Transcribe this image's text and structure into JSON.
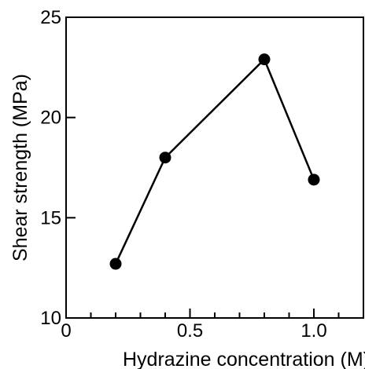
{
  "chart_data": {
    "type": "line",
    "title": "",
    "xlabel": "Hydrazine concentration (M)",
    "ylabel": "Shear strength (MPa)",
    "xlim": [
      0,
      1.2
    ],
    "ylim": [
      10,
      25
    ],
    "x_ticks": [
      {
        "value": 0,
        "label": "0"
      },
      {
        "value": 0.5,
        "label": "0.5"
      },
      {
        "value": 1.0,
        "label": "1.0"
      }
    ],
    "x_minor_ticks": [
      0.1,
      0.2,
      0.3,
      0.4,
      0.6,
      0.7,
      0.8,
      0.9,
      1.1
    ],
    "y_ticks": [
      {
        "value": 10,
        "label": "10"
      },
      {
        "value": 15,
        "label": "15"
      },
      {
        "value": 20,
        "label": "20"
      },
      {
        "value": 25,
        "label": "25"
      }
    ],
    "grid": false,
    "legend": "none",
    "series": [
      {
        "x": [
          0.2,
          0.4,
          0.8,
          1.0
        ],
        "y": [
          12.7,
          18.0,
          22.9,
          16.9
        ],
        "color": "#000000",
        "marker": "circle"
      }
    ]
  }
}
